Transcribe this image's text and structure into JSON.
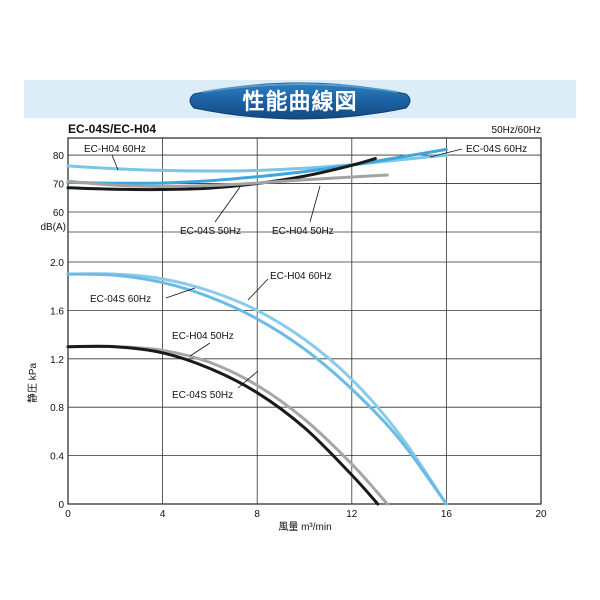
{
  "header": {
    "title": "性能曲線図"
  },
  "chart_data": [
    {
      "type": "line",
      "title": "EC-04S/EC-H04",
      "subtitle": "50Hz/60Hz",
      "ylabel": "dB(A)",
      "yticks": [
        "60",
        "70",
        "80"
      ],
      "ylim": [
        60,
        86
      ],
      "xlim": [
        0,
        20
      ],
      "grid": true,
      "series": [
        {
          "name": "EC-H04 60Hz",
          "color": "#7cc4e8",
          "x": [
            0,
            2,
            4,
            6,
            8,
            10,
            12,
            14,
            16
          ],
          "y": [
            76.2,
            75.2,
            74.6,
            74.4,
            74.6,
            75.4,
            76.6,
            78.3,
            80.0
          ]
        },
        {
          "name": "EC-04S 60Hz",
          "color": "#3ba7dd",
          "x": [
            0,
            2,
            4,
            6,
            8,
            10,
            12,
            14,
            16
          ],
          "y": [
            70.4,
            70.1,
            70.2,
            71.0,
            72.4,
            74.2,
            76.5,
            79.2,
            82.0
          ]
        },
        {
          "name": "EC-04S 50Hz",
          "color": "#1a1a1a",
          "x": [
            0,
            2,
            4,
            6,
            8,
            10,
            12,
            13
          ],
          "y": [
            68.5,
            68.0,
            67.9,
            68.4,
            70.0,
            72.6,
            76.4,
            78.8
          ]
        },
        {
          "name": "EC-H04 50Hz",
          "color": "#a3a3a3",
          "x": [
            0,
            2,
            4,
            6,
            8,
            10,
            12,
            13.5
          ],
          "y": [
            70.8,
            69.4,
            69.0,
            69.3,
            70.2,
            71.3,
            72.3,
            73.0
          ]
        }
      ]
    },
    {
      "type": "line",
      "xlabel": "風量 m³/min",
      "ylabel": "静圧 kPa",
      "xticks": [
        "0",
        "4",
        "8",
        "12",
        "16",
        "20"
      ],
      "yticks": [
        "0",
        "0.4",
        "0.8",
        "1.2",
        "1.6",
        "2.0"
      ],
      "xlim": [
        0,
        20
      ],
      "ylim": [
        0,
        2.0
      ],
      "grid": true,
      "series": [
        {
          "name": "EC-H04 60Hz",
          "color": "#88cbec",
          "x": [
            0,
            2,
            4,
            6,
            8,
            10,
            12,
            14,
            16
          ],
          "y": [
            1.9,
            1.9,
            1.86,
            1.76,
            1.6,
            1.36,
            1.03,
            0.58,
            0.0
          ]
        },
        {
          "name": "EC-04S 60Hz",
          "color": "#6bbbe3",
          "x": [
            0,
            2,
            4,
            6,
            8,
            10,
            12,
            14,
            16
          ],
          "y": [
            1.9,
            1.89,
            1.83,
            1.71,
            1.53,
            1.28,
            0.95,
            0.54,
            0.0
          ]
        },
        {
          "name": "EC-H04 50Hz",
          "color": "#a6a6a6",
          "x": [
            0,
            2,
            4,
            6,
            8,
            10,
            12,
            13.5
          ],
          "y": [
            1.3,
            1.3,
            1.27,
            1.17,
            0.98,
            0.7,
            0.33,
            0.0
          ]
        },
        {
          "name": "EC-04S 50Hz",
          "color": "#1a1a1a",
          "x": [
            0,
            2,
            4,
            6,
            8,
            10,
            12,
            13.1
          ],
          "y": [
            1.3,
            1.3,
            1.25,
            1.12,
            0.92,
            0.63,
            0.24,
            0.0
          ]
        }
      ]
    }
  ]
}
